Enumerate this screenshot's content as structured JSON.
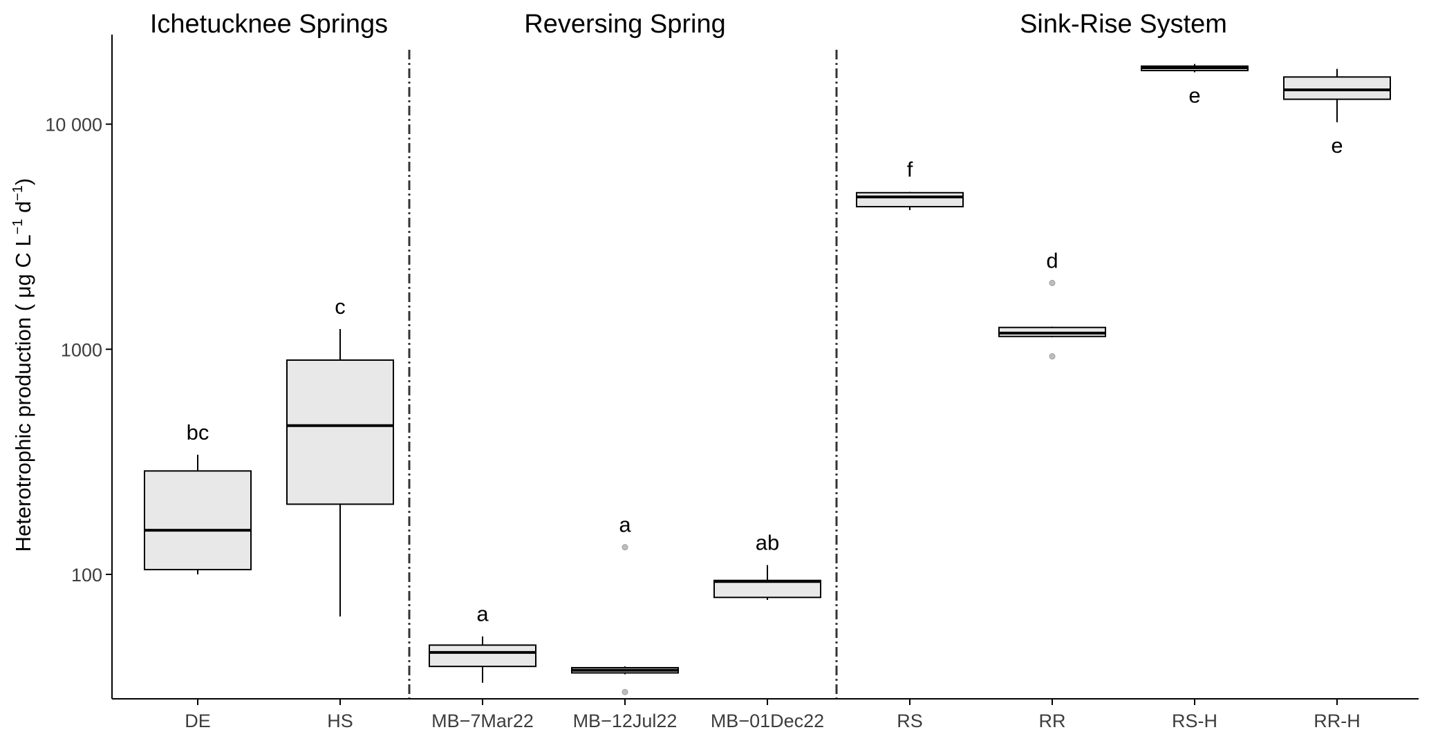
{
  "chart_data": {
    "type": "boxplot",
    "y_scale": "log10",
    "ylim": [
      28,
      25000
    ],
    "ylabel": {
      "text": "Heterotrophic production ( μg C L",
      "sup1": "−1",
      "mid": " d",
      "sup2": "−1",
      "end": ")"
    },
    "y_ticks": [
      {
        "value": 100,
        "label": "100"
      },
      {
        "value": 1000,
        "label": "1000"
      },
      {
        "value": 10000,
        "label": "10 000"
      }
    ],
    "categories": [
      "DE",
      "HS",
      "MB−7Mar22",
      "MB−12Jul22",
      "MB−01Dec22",
      "RS",
      "RR",
      "RS-H",
      "RR-H"
    ],
    "groups": [
      {
        "title": "Ichetucknee Springs",
        "categories": [
          "DE",
          "HS"
        ]
      },
      {
        "title": "Reversing Spring",
        "categories": [
          "MB−7Mar22",
          "MB−12Jul22",
          "MB−01Dec22"
        ]
      },
      {
        "title": "Sink-Rise System",
        "categories": [
          "RS",
          "RR",
          "RS-H",
          "RR-H"
        ]
      }
    ],
    "boxes": [
      {
        "category": "DE",
        "whisker_low": 100,
        "q1": 105,
        "median": 157,
        "q3": 288,
        "whisker_high": 340,
        "outliers": [],
        "letter": "bc"
      },
      {
        "category": "HS",
        "whisker_low": 65,
        "q1": 205,
        "median": 458,
        "q3": 895,
        "whisker_high": 1230,
        "outliers": [],
        "letter": "c"
      },
      {
        "category": "MB−7Mar22",
        "whisker_low": 33,
        "q1": 39,
        "median": 45,
        "q3": 48.5,
        "whisker_high": 53,
        "outliers": [],
        "letter": "a"
      },
      {
        "category": "MB−12Jul22",
        "whisker_low": 36,
        "q1": 36.5,
        "median": 37.5,
        "q3": 38.5,
        "whisker_high": 39,
        "outliers": [
          30,
          132
        ],
        "letter": "a"
      },
      {
        "category": "MB−01Dec22",
        "whisker_low": 77,
        "q1": 79,
        "median": 93,
        "q3": 94,
        "whisker_high": 110,
        "outliers": [],
        "letter": "ab"
      },
      {
        "category": "RS",
        "whisker_low": 4150,
        "q1": 4300,
        "median": 4750,
        "q3": 4960,
        "whisker_high": 5000,
        "outliers": [],
        "letter": "f"
      },
      {
        "category": "RR",
        "whisker_low": 1130,
        "q1": 1140,
        "median": 1180,
        "q3": 1250,
        "whisker_high": 1260,
        "outliers": [
          930,
          1970
        ],
        "letter": "d"
      },
      {
        "category": "RS-H",
        "whisker_low": 17000,
        "q1": 17300,
        "median": 17800,
        "q3": 18100,
        "whisker_high": 18500,
        "outliers": [],
        "letter": "e"
      },
      {
        "category": "RR-H",
        "whisker_low": 10200,
        "q1": 12900,
        "median": 14200,
        "q3": 16200,
        "whisker_high": 17600,
        "outliers": [],
        "letter": "e"
      }
    ],
    "colors": {
      "box_fill": "#e8e8e8",
      "box_stroke": "#000000",
      "outlier": "#bdbdbd",
      "axis": "#000000",
      "tick_label": "#3d3d3d",
      "separator": "#333333"
    }
  }
}
